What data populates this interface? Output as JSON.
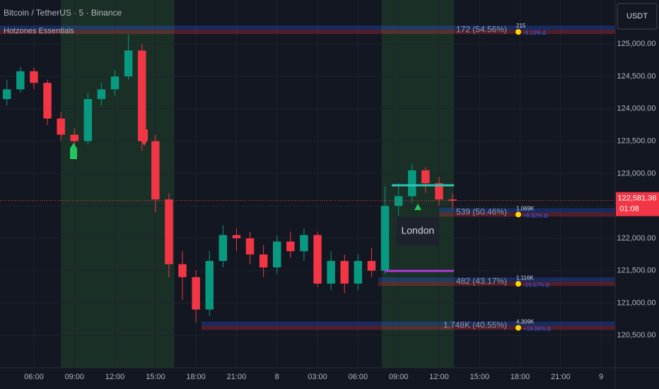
{
  "chart_data": {
    "type": "candlestick",
    "title": "Bitcoin / TetherUS · 5 · Binance",
    "indicator": "Hotzones Essentials",
    "currency": "USDT",
    "x": [
      4,
      5,
      6,
      7,
      8,
      9,
      10,
      11,
      12,
      13,
      14,
      15,
      16,
      17,
      18,
      19,
      20,
      21,
      22,
      23,
      24,
      25,
      26,
      27,
      28,
      29,
      30,
      31,
      32,
      33,
      34,
      35,
      36,
      37
    ],
    "open": [
      124150,
      124300,
      124580,
      124400,
      123850,
      123600,
      123500,
      124150,
      124300,
      124500,
      124900,
      123500,
      122600,
      121600,
      121400,
      120900,
      121650,
      122050,
      122000,
      121750,
      121550,
      121950,
      121800,
      122050,
      121300,
      121650,
      121300,
      121650,
      121500,
      122500,
      122650,
      123050,
      122850,
      122600
    ],
    "high": [
      124450,
      124650,
      124640,
      124450,
      123950,
      123700,
      124250,
      124400,
      124600,
      125150,
      125000,
      123600,
      122700,
      121800,
      121500,
      121800,
      122200,
      122150,
      122100,
      121900,
      122050,
      122100,
      122150,
      122100,
      121800,
      121750,
      121750,
      121850,
      122800,
      122850,
      123150,
      123100,
      122950,
      122700
    ],
    "low": [
      124050,
      124250,
      124300,
      123750,
      123500,
      123380,
      123450,
      124050,
      124200,
      124450,
      123350,
      122400,
      121400,
      121050,
      120700,
      120800,
      121550,
      121800,
      121600,
      121400,
      121450,
      121700,
      121650,
      121250,
      121200,
      121150,
      121200,
      121400,
      121450,
      122350,
      122550,
      122700,
      122500,
      122450
    ],
    "close": [
      124300,
      124580,
      124400,
      123850,
      123600,
      123500,
      124150,
      124300,
      124500,
      124900,
      123500,
      122600,
      121600,
      121400,
      120900,
      121650,
      122050,
      122000,
      121750,
      121550,
      121950,
      121800,
      122050,
      121300,
      121650,
      121300,
      121650,
      121500,
      122500,
      122650,
      123050,
      122850,
      122600,
      122580
    ],
    "up_color": "#089981",
    "down_color": "#f23645",
    "xlim": [
      3.49,
      49.04
    ],
    "xticks": [
      {
        "value": 6,
        "label": "06:00"
      },
      {
        "value": 9,
        "label": "09:00"
      },
      {
        "value": 12,
        "label": "12:00"
      },
      {
        "value": 15,
        "label": "15:00"
      },
      {
        "value": 18,
        "label": "18:00"
      },
      {
        "value": 21,
        "label": "21:00"
      },
      {
        "value": 24,
        "label": "8"
      },
      {
        "value": 27,
        "label": "03:00"
      },
      {
        "value": 30,
        "label": "06:00"
      },
      {
        "value": 33,
        "label": "09:00"
      },
      {
        "value": 36,
        "label": "12:00"
      },
      {
        "value": 39,
        "label": "15:00"
      },
      {
        "value": 42,
        "label": "18:00"
      },
      {
        "value": 45,
        "label": "21:00"
      },
      {
        "value": 48,
        "label": "9"
      }
    ],
    "ylim": [
      120000,
      125680
    ],
    "yticks": [
      {
        "value": 120500,
        "label": "120,500.00"
      },
      {
        "value": 121000,
        "label": "121,000.00"
      },
      {
        "value": 121500,
        "label": "121,500.00"
      },
      {
        "value": 122000,
        "label": "122,000.00"
      },
      {
        "value": 122500,
        "label": "122,500.00"
      },
      {
        "value": 123000,
        "label": "123,000.00"
      },
      {
        "value": 123500,
        "label": "123,500.00"
      },
      {
        "value": 124000,
        "label": "124,000.00"
      },
      {
        "value": 124500,
        "label": "124,500.00"
      },
      {
        "value": 125000,
        "label": "125,000.00"
      }
    ],
    "grid": true,
    "current_price": {
      "value": 122581.36,
      "label": "122,581.36"
    },
    "countdown": "01:08",
    "sessions": [
      {
        "start": 8,
        "end": 16.4
      },
      {
        "start": 31.75,
        "end": 37.1,
        "label": "London"
      }
    ],
    "zones": [
      {
        "level": 125220,
        "x_start": 3.49,
        "label": "172 (54.56%)",
        "volume_label": "215",
        "delta_label": "-9.13% Δ"
      },
      {
        "level": 122400,
        "x_start": 36,
        "label": "539 (50.46%)",
        "volume_label": "1.069K",
        "delta_label": "+8.92% Δ"
      },
      {
        "level": 121330,
        "x_start": 31.5,
        "label": "482 (43.17%)",
        "volume_label": "1.116K",
        "delta_label": "-16.57% Δ"
      },
      {
        "level": 120650,
        "x_start": 18.4,
        "label": "1.748K (40.55%)",
        "volume_label": "4.309K",
        "delta_label": "+18.89% Δ"
      }
    ]
  }
}
